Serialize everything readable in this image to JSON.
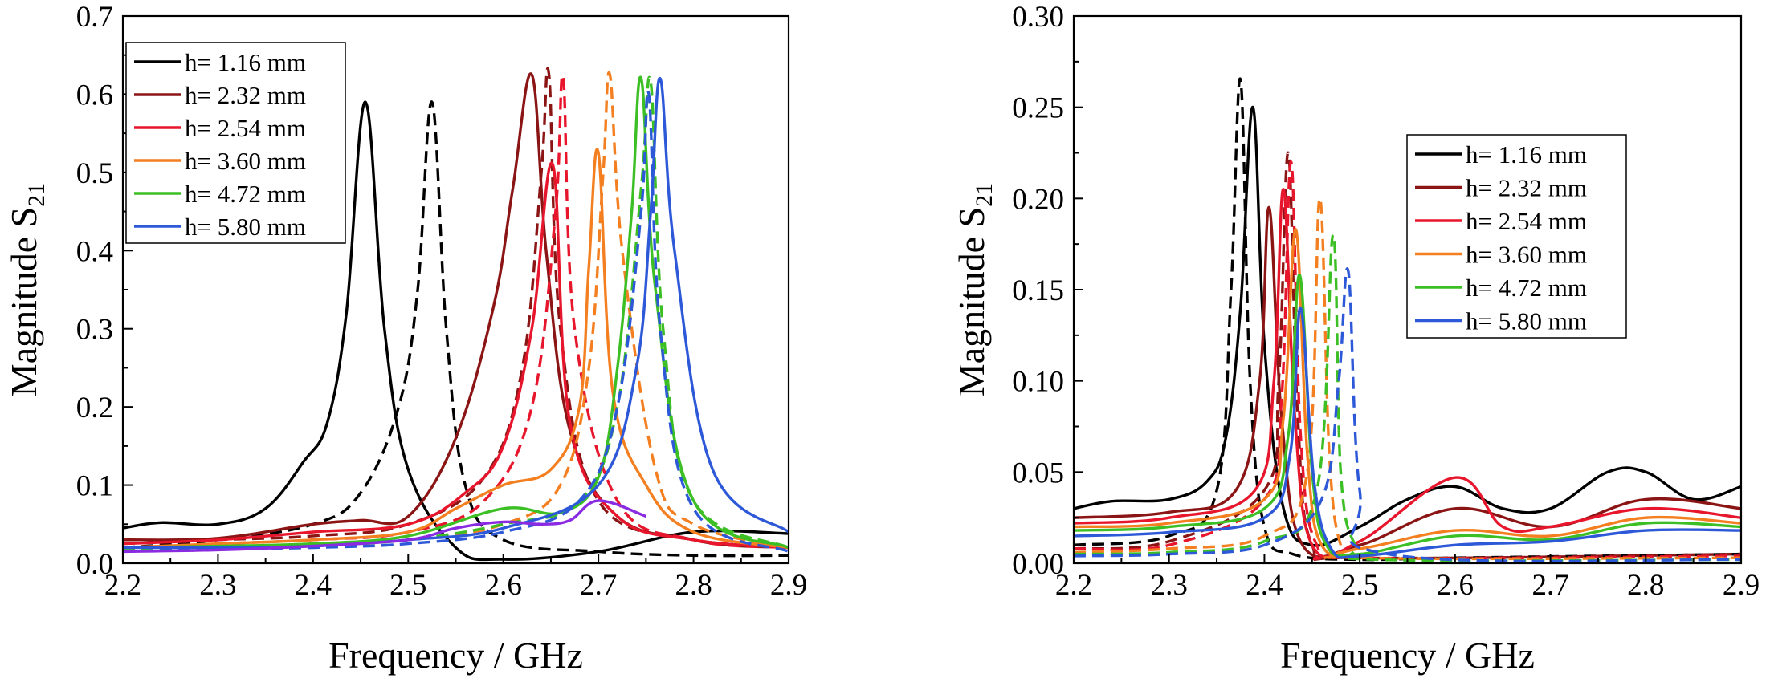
{
  "chart_data": [
    {
      "type": "line",
      "xlabel": "Frequency / GHz",
      "ylabel_main": "Magnitude S",
      "ylabel_sub": "21",
      "xlim": [
        2.2,
        2.9
      ],
      "ylim": [
        0,
        0.7
      ],
      "x_ticks": [
        2.2,
        2.3,
        2.4,
        2.5,
        2.6,
        2.7,
        2.8,
        2.9
      ],
      "x_tick_labels": [
        "2.2",
        "2.3",
        "2.4",
        "2.5",
        "2.6",
        "2.7",
        "2.8",
        "2.9"
      ],
      "y_ticks": [
        0,
        0.1,
        0.2,
        0.3,
        0.4,
        0.5,
        0.6,
        0.7
      ],
      "y_tick_labels": [
        "0.0",
        "0.1",
        "0.2",
        "0.3",
        "0.4",
        "0.5",
        "0.6",
        "0.7"
      ],
      "grid": false,
      "legend": {
        "placement": "top-left",
        "entries": [
          {
            "label": "h= 1.16 mm",
            "color": "#000000"
          },
          {
            "label": "h= 2.32 mm",
            "color": "#8b1515"
          },
          {
            "label": "h= 2.54 mm",
            "color": "#e8162c"
          },
          {
            "label": "h= 3.60 mm",
            "color": "#f47f20"
          },
          {
            "label": "h= 4.72 mm",
            "color": "#3cbf24"
          },
          {
            "label": "h= 5.80 mm",
            "color": "#2d59d8"
          }
        ]
      },
      "series": [
        {
          "color": "#000000",
          "dash": false,
          "x": [
            2.2,
            2.24,
            2.3,
            2.35,
            2.39,
            2.415,
            2.435,
            2.455,
            2.475,
            2.5,
            2.55,
            2.6,
            2.7,
            2.8,
            2.9
          ],
          "y": [
            0.045,
            0.052,
            0.05,
            0.07,
            0.13,
            0.18,
            0.32,
            0.59,
            0.3,
            0.12,
            0.02,
            0.005,
            0.015,
            0.04,
            0.038
          ]
        },
        {
          "color": "#000000",
          "dash": true,
          "x": [
            2.2,
            2.3,
            2.4,
            2.45,
            2.49,
            2.51,
            2.525,
            2.54,
            2.56,
            2.6,
            2.7,
            2.8,
            2.9
          ],
          "y": [
            0.02,
            0.03,
            0.05,
            0.09,
            0.2,
            0.35,
            0.59,
            0.3,
            0.1,
            0.03,
            0.015,
            0.01,
            0.01
          ]
        },
        {
          "color": "#8b1515",
          "dash": false,
          "x": [
            2.2,
            2.3,
            2.4,
            2.45,
            2.5,
            2.55,
            2.59,
            2.61,
            2.63,
            2.645,
            2.67,
            2.72,
            2.8,
            2.9
          ],
          "y": [
            0.03,
            0.032,
            0.05,
            0.055,
            0.06,
            0.16,
            0.33,
            0.48,
            0.625,
            0.4,
            0.17,
            0.06,
            0.03,
            0.02
          ]
        },
        {
          "color": "#8b1515",
          "dash": true,
          "x": [
            2.2,
            2.3,
            2.4,
            2.5,
            2.58,
            2.62,
            2.64,
            2.648,
            2.66,
            2.7,
            2.8,
            2.9
          ],
          "y": [
            0.025,
            0.03,
            0.035,
            0.05,
            0.11,
            0.25,
            0.5,
            0.625,
            0.3,
            0.08,
            0.03,
            0.02
          ]
        },
        {
          "color": "#e8162c",
          "dash": false,
          "x": [
            2.2,
            2.3,
            2.4,
            2.5,
            2.56,
            2.6,
            2.63,
            2.652,
            2.67,
            2.72,
            2.8,
            2.9
          ],
          "y": [
            0.025,
            0.03,
            0.04,
            0.05,
            0.09,
            0.15,
            0.3,
            0.51,
            0.18,
            0.06,
            0.03,
            0.02
          ]
        },
        {
          "color": "#e8162c",
          "dash": true,
          "x": [
            2.2,
            2.3,
            2.4,
            2.5,
            2.58,
            2.63,
            2.655,
            2.663,
            2.675,
            2.72,
            2.8,
            2.9
          ],
          "y": [
            0.02,
            0.025,
            0.03,
            0.04,
            0.08,
            0.2,
            0.45,
            0.62,
            0.3,
            0.08,
            0.03,
            0.02
          ]
        },
        {
          "color": "#f47f20",
          "dash": false,
          "x": [
            2.2,
            2.3,
            2.4,
            2.5,
            2.55,
            2.6,
            2.65,
            2.68,
            2.69,
            2.7,
            2.715,
            2.75,
            2.8,
            2.9
          ],
          "y": [
            0.02,
            0.025,
            0.03,
            0.04,
            0.07,
            0.1,
            0.12,
            0.2,
            0.38,
            0.525,
            0.22,
            0.1,
            0.04,
            0.02
          ]
        },
        {
          "color": "#f47f20",
          "dash": true,
          "x": [
            2.2,
            2.3,
            2.4,
            2.5,
            2.6,
            2.66,
            2.69,
            2.705,
            2.712,
            2.725,
            2.76,
            2.8,
            2.9
          ],
          "y": [
            0.02,
            0.02,
            0.025,
            0.03,
            0.05,
            0.1,
            0.25,
            0.5,
            0.625,
            0.4,
            0.12,
            0.05,
            0.02
          ]
        },
        {
          "color": "#3cbf24",
          "dash": false,
          "x": [
            2.2,
            2.3,
            2.4,
            2.5,
            2.6,
            2.66,
            2.7,
            2.72,
            2.735,
            2.745,
            2.76,
            2.8,
            2.9
          ],
          "y": [
            0.02,
            0.022,
            0.025,
            0.035,
            0.07,
            0.065,
            0.11,
            0.25,
            0.45,
            0.62,
            0.35,
            0.08,
            0.02
          ]
        },
        {
          "color": "#3cbf24",
          "dash": true,
          "x": [
            2.2,
            2.3,
            2.4,
            2.5,
            2.6,
            2.68,
            2.72,
            2.745,
            2.755,
            2.768,
            2.8,
            2.9
          ],
          "y": [
            0.018,
            0.02,
            0.022,
            0.03,
            0.05,
            0.08,
            0.2,
            0.48,
            0.615,
            0.3,
            0.08,
            0.02
          ]
        },
        {
          "color": "#2d59d8",
          "dash": false,
          "x": [
            2.2,
            2.3,
            2.4,
            2.5,
            2.6,
            2.7,
            2.74,
            2.755,
            2.765,
            2.78,
            2.82,
            2.9
          ],
          "y": [
            0.02,
            0.02,
            0.022,
            0.03,
            0.045,
            0.1,
            0.25,
            0.45,
            0.62,
            0.4,
            0.12,
            0.04
          ]
        },
        {
          "color": "#2d59d8",
          "dash": true,
          "x": [
            2.2,
            2.3,
            2.4,
            2.5,
            2.6,
            2.68,
            2.72,
            2.745,
            2.753,
            2.765,
            2.8,
            2.9
          ],
          "y": [
            0.015,
            0.018,
            0.02,
            0.025,
            0.04,
            0.08,
            0.2,
            0.45,
            0.6,
            0.3,
            0.07,
            0.015
          ]
        },
        {
          "color": "#8a2be2",
          "dash": false,
          "x": [
            2.2,
            2.3,
            2.4,
            2.5,
            2.55,
            2.6,
            2.64,
            2.67,
            2.7,
            2.75
          ],
          "y": [
            0.015,
            0.017,
            0.022,
            0.03,
            0.045,
            0.053,
            0.05,
            0.055,
            0.08,
            0.06
          ]
        }
      ]
    },
    {
      "type": "line",
      "xlabel": "Frequency / GHz",
      "ylabel_main": "Magnitude S",
      "ylabel_sub": "21",
      "xlim": [
        2.2,
        2.9
      ],
      "ylim": [
        0,
        0.3
      ],
      "x_ticks": [
        2.2,
        2.3,
        2.4,
        2.5,
        2.6,
        2.7,
        2.8,
        2.9
      ],
      "x_tick_labels": [
        "2.2",
        "2.3",
        "2.4",
        "2.5",
        "2.6",
        "2.7",
        "2.8",
        "2.9"
      ],
      "y_ticks": [
        0,
        0.05,
        0.1,
        0.15,
        0.2,
        0.25,
        0.3
      ],
      "y_tick_labels": [
        "0.00",
        "0.05",
        "0.10",
        "0.15",
        "0.20",
        "0.25",
        "0.30"
      ],
      "grid": false,
      "legend": {
        "placement": "top-right",
        "entries": [
          {
            "label": "h= 1.16 mm",
            "color": "#000000"
          },
          {
            "label": "h= 2.32 mm",
            "color": "#8b1515"
          },
          {
            "label": "h= 2.54 mm",
            "color": "#e8162c"
          },
          {
            "label": "h= 3.60 mm",
            "color": "#f47f20"
          },
          {
            "label": "h= 4.72 mm",
            "color": "#3cbf24"
          },
          {
            "label": "h= 5.80 mm",
            "color": "#2d59d8"
          }
        ]
      },
      "series": [
        {
          "color": "#000000",
          "dash": false,
          "x": [
            2.2,
            2.24,
            2.3,
            2.34,
            2.36,
            2.375,
            2.388,
            2.4,
            2.42,
            2.45,
            2.5,
            2.55,
            2.6,
            2.65,
            2.7,
            2.76,
            2.8,
            2.85,
            2.9
          ],
          "y": [
            0.03,
            0.034,
            0.035,
            0.045,
            0.07,
            0.14,
            0.25,
            0.12,
            0.03,
            0.01,
            0.02,
            0.035,
            0.042,
            0.03,
            0.03,
            0.05,
            0.05,
            0.035,
            0.042
          ]
        },
        {
          "color": "#000000",
          "dash": true,
          "x": [
            2.2,
            2.3,
            2.35,
            2.365,
            2.375,
            2.385,
            2.4,
            2.43,
            2.5,
            2.6,
            2.9
          ],
          "y": [
            0.01,
            0.015,
            0.04,
            0.15,
            0.265,
            0.1,
            0.02,
            0.005,
            0.002,
            0.003,
            0.005
          ]
        },
        {
          "color": "#8b1515",
          "dash": false,
          "x": [
            2.2,
            2.3,
            2.37,
            2.395,
            2.405,
            2.418,
            2.44,
            2.5,
            2.6,
            2.7,
            2.8,
            2.9
          ],
          "y": [
            0.025,
            0.028,
            0.04,
            0.1,
            0.195,
            0.08,
            0.01,
            0.01,
            0.03,
            0.02,
            0.035,
            0.03
          ]
        },
        {
          "color": "#8b1515",
          "dash": true,
          "x": [
            2.2,
            2.3,
            2.4,
            2.415,
            2.425,
            2.435,
            2.45,
            2.5,
            2.9
          ],
          "y": [
            0.008,
            0.012,
            0.04,
            0.1,
            0.225,
            0.08,
            0.01,
            0.003,
            0.005
          ]
        },
        {
          "color": "#e8162c",
          "dash": false,
          "x": [
            2.2,
            2.3,
            2.39,
            2.41,
            2.42,
            2.432,
            2.45,
            2.5,
            2.6,
            2.65,
            2.7,
            2.8,
            2.9
          ],
          "y": [
            0.022,
            0.025,
            0.04,
            0.1,
            0.205,
            0.08,
            0.01,
            0.012,
            0.047,
            0.02,
            0.02,
            0.03,
            0.025
          ]
        },
        {
          "color": "#e8162c",
          "dash": true,
          "x": [
            2.2,
            2.3,
            2.4,
            2.418,
            2.428,
            2.438,
            2.455,
            2.5,
            2.9
          ],
          "y": [
            0.008,
            0.01,
            0.035,
            0.09,
            0.22,
            0.07,
            0.01,
            0.003,
            0.004
          ]
        },
        {
          "color": "#f47f20",
          "dash": false,
          "x": [
            2.2,
            2.3,
            2.4,
            2.42,
            2.433,
            2.445,
            2.46,
            2.5,
            2.6,
            2.7,
            2.8,
            2.9
          ],
          "y": [
            0.02,
            0.022,
            0.035,
            0.08,
            0.183,
            0.06,
            0.01,
            0.008,
            0.018,
            0.015,
            0.025,
            0.022
          ]
        },
        {
          "color": "#f47f20",
          "dash": true,
          "x": [
            2.2,
            2.3,
            2.4,
            2.445,
            2.458,
            2.468,
            2.48,
            2.5,
            2.9
          ],
          "y": [
            0.006,
            0.008,
            0.015,
            0.05,
            0.2,
            0.06,
            0.01,
            0.003,
            0.003
          ]
        },
        {
          "color": "#3cbf24",
          "dash": false,
          "x": [
            2.2,
            2.3,
            2.4,
            2.425,
            2.437,
            2.45,
            2.465,
            2.5,
            2.6,
            2.7,
            2.8,
            2.9
          ],
          "y": [
            0.018,
            0.02,
            0.03,
            0.07,
            0.158,
            0.05,
            0.01,
            0.005,
            0.015,
            0.013,
            0.022,
            0.02
          ]
        },
        {
          "color": "#3cbf24",
          "dash": true,
          "x": [
            2.2,
            2.3,
            2.4,
            2.455,
            2.472,
            2.48,
            2.495,
            2.52,
            2.9
          ],
          "y": [
            0.005,
            0.006,
            0.012,
            0.04,
            0.18,
            0.05,
            0.01,
            0.002,
            0.002
          ]
        },
        {
          "color": "#2d59d8",
          "dash": false,
          "x": [
            2.2,
            2.3,
            2.4,
            2.427,
            2.438,
            2.452,
            2.47,
            2.5,
            2.6,
            2.7,
            2.8,
            2.9
          ],
          "y": [
            0.015,
            0.017,
            0.025,
            0.06,
            0.14,
            0.045,
            0.008,
            0.004,
            0.01,
            0.012,
            0.018,
            0.018
          ]
        },
        {
          "color": "#2d59d8",
          "dash": true,
          "x": [
            2.2,
            2.3,
            2.4,
            2.46,
            2.478,
            2.488,
            2.5,
            2.53,
            2.9
          ],
          "y": [
            0.004,
            0.005,
            0.01,
            0.035,
            0.1,
            0.16,
            0.04,
            0.005,
            0.002
          ]
        }
      ]
    }
  ]
}
